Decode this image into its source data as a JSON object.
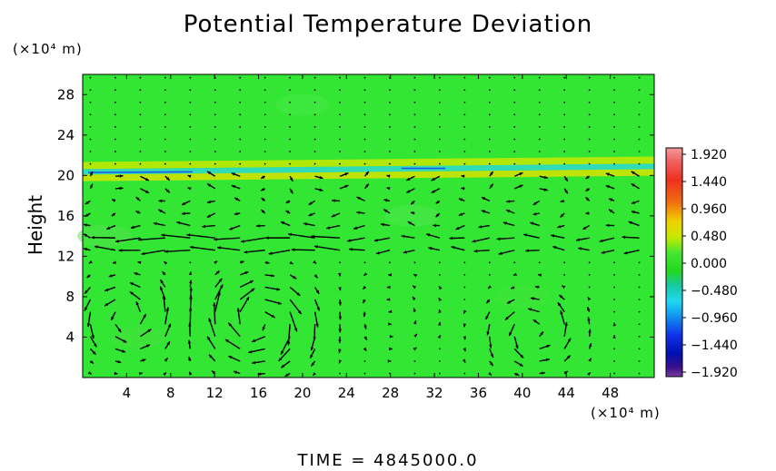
{
  "chart_data": {
    "type": "heatmap",
    "title": "Potential Temperature Deviation",
    "ylabel": "Height",
    "x_unit": "(×10⁴ m)",
    "y_unit": "(×10⁴ m)",
    "xlim": [
      0,
      52
    ],
    "ylim": [
      0,
      30
    ],
    "x_ticks": [
      "4",
      "8",
      "12",
      "16",
      "20",
      "24",
      "28",
      "32",
      "36",
      "40",
      "44",
      "48"
    ],
    "y_ticks": [
      "4",
      "8",
      "12",
      "16",
      "20",
      "24",
      "28"
    ],
    "colorbar": {
      "labels": [
        "1.920",
        "1.440",
        "0.960",
        "0.480",
        "0.000",
        "−0.480",
        "−0.960",
        "−1.440",
        "−1.920"
      ],
      "min": -1.92,
      "max": 1.92
    },
    "field": {
      "background_value": 0.0,
      "anomaly_bands": [
        {
          "y_center": 21.2,
          "value": 0.7
        },
        {
          "y_center": 20.6,
          "value": -0.45
        },
        {
          "y_center": 20.0,
          "value": 0.6
        }
      ]
    },
    "vectors": "wind field with counter-rotating cells centered near x=4, 16, 42 (y≈6) and a strong westward jet at y≈13"
  },
  "footer": {
    "time_text": "TIME  =  4845000.0"
  },
  "colors": {
    "background_field": "#33e633",
    "arrows": "#000000"
  }
}
